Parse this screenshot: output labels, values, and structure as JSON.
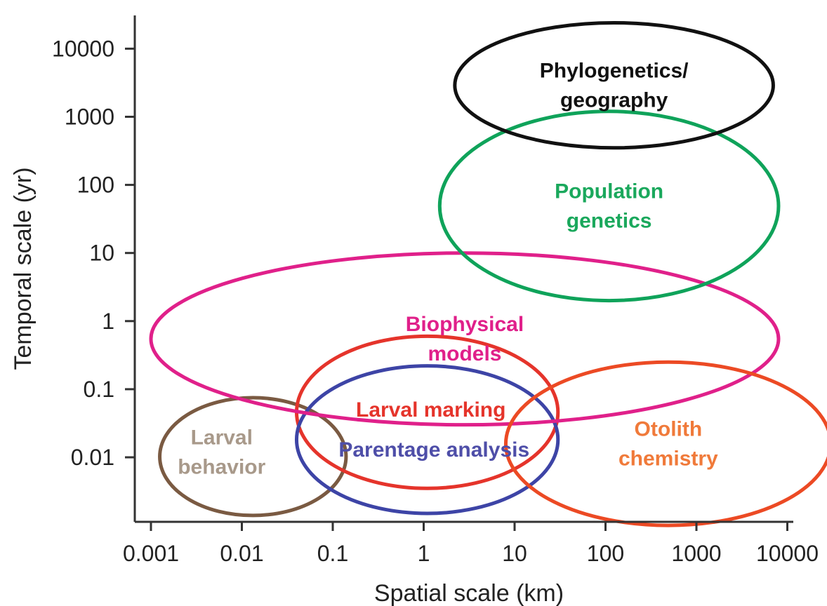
{
  "chart_data": {
    "type": "scatter",
    "xlabel": "Spatial scale (km)",
    "ylabel": "Temporal scale (yr)",
    "xscale": "log",
    "yscale": "log",
    "xlim": [
      0.0006,
      18000
    ],
    "ylim": [
      0.0009,
      40000
    ],
    "x_ticks": [
      "0.001",
      "0.01",
      "0.1",
      "1",
      "10",
      "100",
      "1000",
      "10000"
    ],
    "y_ticks": [
      "0.01",
      "0.1",
      "1",
      "10",
      "100",
      "1000",
      "10000"
    ],
    "grid": false,
    "legend": "none",
    "regions": [
      {
        "name": "Larval behavior",
        "label_lines": [
          "Larval",
          "behavior"
        ],
        "color": "#7a5a42",
        "label_color": "#a8998a",
        "x_range": [
          0.00125,
          0.14
        ],
        "y_range": [
          0.0014,
          0.075
        ],
        "label_at": [
          0.006,
          0.012
        ]
      },
      {
        "name": "Larval marking",
        "label_lines": [
          "Larval marking"
        ],
        "color": "#e5342b",
        "label_color": "#e5342b",
        "x_range": [
          0.04,
          30
        ],
        "y_range": [
          0.0035,
          0.6
        ],
        "label_at": [
          1.2,
          0.05
        ]
      },
      {
        "name": "Parentage analysis",
        "label_lines": [
          "Parentage analysis"
        ],
        "color": "#3d44a6",
        "label_color": "#4e4ea8",
        "x_range": [
          0.04,
          30
        ],
        "y_range": [
          0.0015,
          0.22
        ],
        "label_at": [
          1.3,
          0.013
        ]
      },
      {
        "name": "Biophysical models",
        "label_lines": [
          "Biophysical",
          "models"
        ],
        "color": "#e0208a",
        "label_color": "#e0208a",
        "x_range": [
          0.001,
          8000
        ],
        "y_range": [
          0.03,
          10
        ],
        "label_at": [
          0,
          0
        ]
      },
      {
        "name": "Otolith chemistry",
        "label_lines": [
          "Otolith",
          "chemistry"
        ],
        "color": "#ec4a24",
        "label_color": "#f07a3a",
        "x_range": [
          8,
          30000
        ],
        "y_range": [
          0.001,
          0.25
        ],
        "label_at": [
          0,
          0
        ]
      },
      {
        "name": "Population genetics",
        "label_lines": [
          "Population",
          "genetics"
        ],
        "color": "#0fa35a",
        "label_color": "#1aa85c",
        "x_range": [
          1.5,
          8000
        ],
        "y_range": [
          2,
          1200
        ],
        "label_at": [
          0,
          0
        ]
      },
      {
        "name": "Phylogenetics/ geography",
        "label_lines": [
          "Phylogenetics/",
          "geography"
        ],
        "color": "#111111",
        "label_color": "#111111",
        "x_range": [
          2.2,
          7000
        ],
        "y_range": [
          350,
          24000
        ],
        "label_at": [
          0,
          0
        ]
      }
    ]
  }
}
